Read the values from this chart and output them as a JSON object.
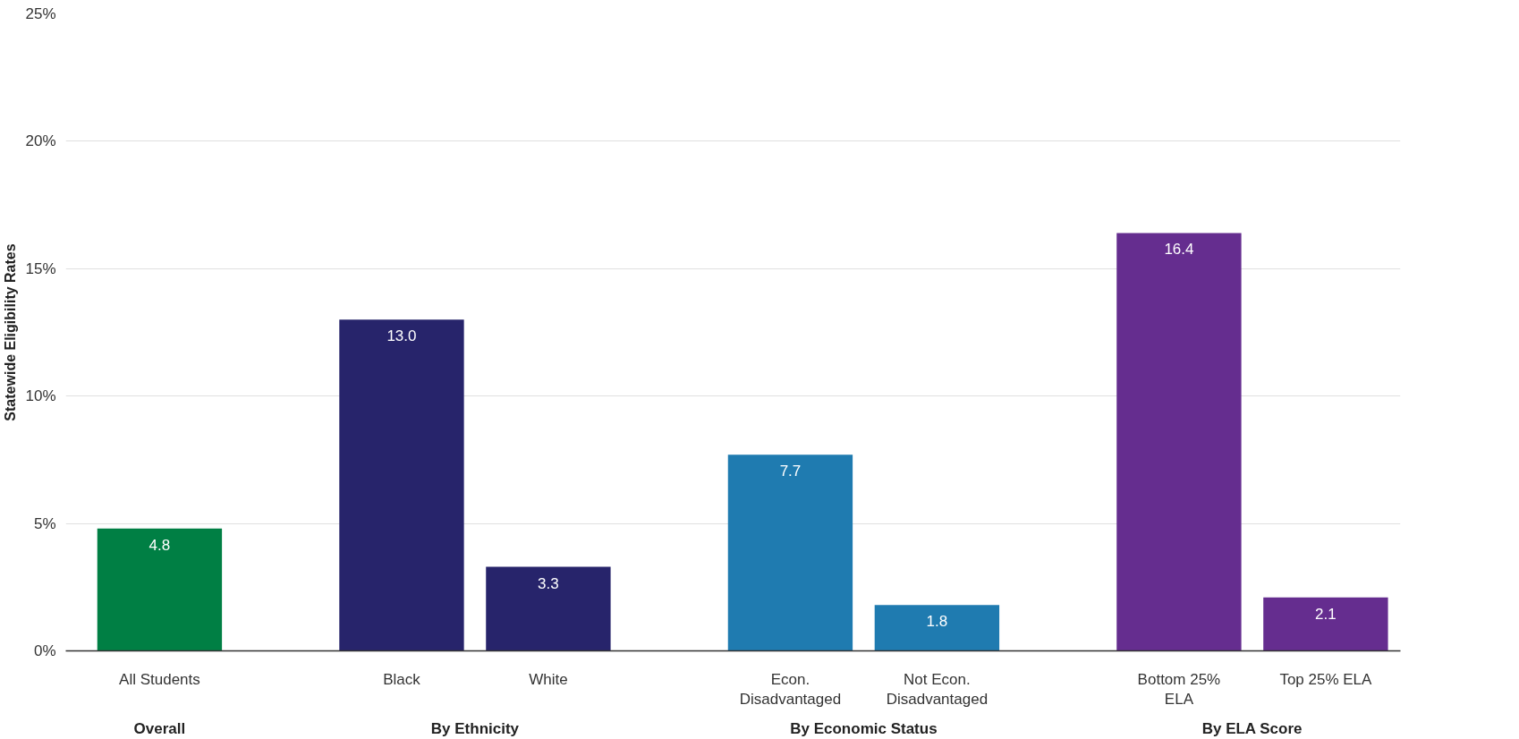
{
  "chart_data": {
    "type": "bar",
    "ylabel": "Statewide Eligibility Rates",
    "categories": [
      "All Students",
      "Black",
      "White",
      "Econ.\nDisadvantaged",
      "Not Econ.\nDisadvantaged",
      "Bottom 25%\nELA",
      "Top 25% ELA"
    ],
    "values": [
      4.8,
      13.0,
      3.3,
      7.7,
      1.8,
      16.4,
      2.1
    ],
    "colors": [
      "#007f44",
      "#27246b",
      "#27246b",
      "#1f7bb0",
      "#1f7bb0",
      "#652d8f",
      "#652d8f"
    ],
    "annotations": [
      "Overall",
      "By Ethnicity",
      "By Economic Status",
      "By ELA Score"
    ],
    "ylim": [
      0,
      25
    ],
    "yticks": [
      {
        "value": 0,
        "label": "0%"
      },
      {
        "value": 5,
        "label": "5%"
      },
      {
        "value": 10,
        "label": "10%"
      },
      {
        "value": 15,
        "label": "15%"
      },
      {
        "value": 20,
        "label": "20%"
      },
      {
        "value": 25,
        "label": "25%"
      }
    ],
    "value_labels": [
      "4.8",
      "13.0",
      "3.3",
      "7.7",
      "1.8",
      "16.4",
      "2.1"
    ],
    "grid": "y"
  }
}
